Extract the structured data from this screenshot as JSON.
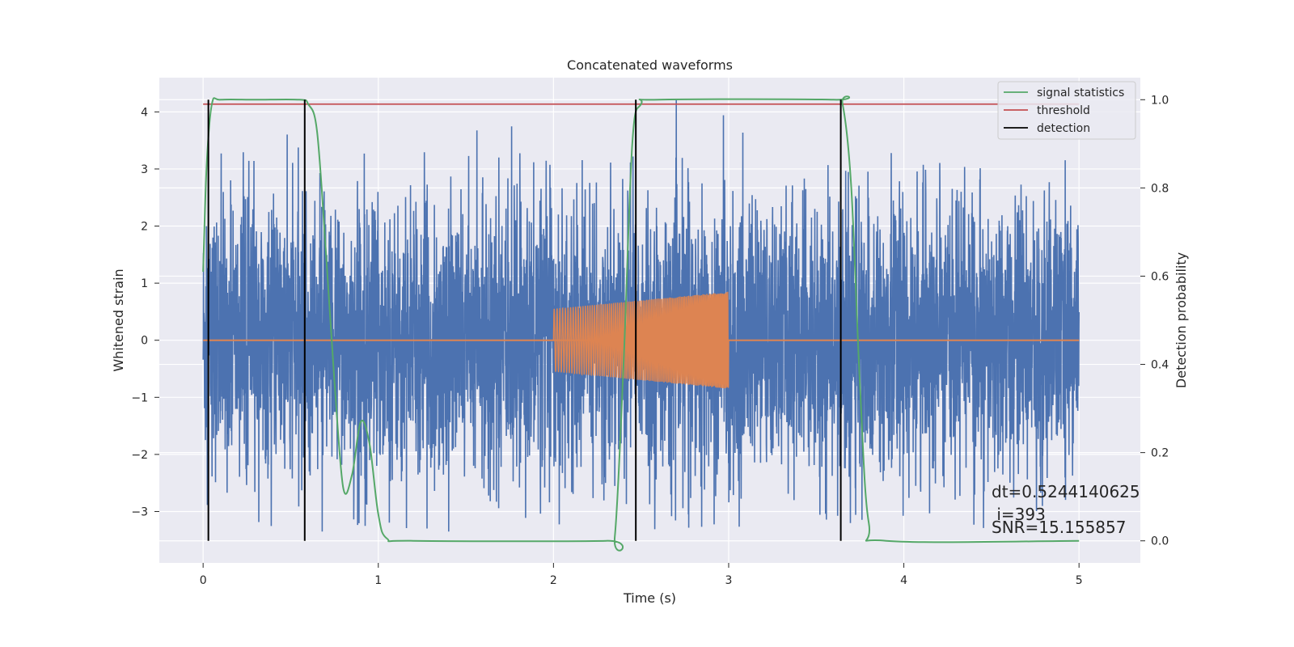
{
  "chart_data": {
    "type": "line",
    "title": "Concatenated waveforms",
    "xlabel": "Time (s)",
    "ylabel": "Whitened strain",
    "y2label": "Detection probability",
    "xlim": [
      -0.25,
      5.35
    ],
    "ylim": [
      -3.9,
      4.6
    ],
    "y2lim": [
      -0.05,
      1.05
    ],
    "xticks": [
      0,
      1,
      2,
      3,
      4,
      5
    ],
    "yticks": [
      -3,
      -2,
      -1,
      0,
      1,
      2,
      3,
      4
    ],
    "y2ticks": [
      0.0,
      0.2,
      0.4,
      0.6,
      0.8,
      1.0
    ],
    "grid": true,
    "legend_position": "top-right",
    "series": [
      {
        "name": "",
        "role": "noise",
        "color": "#4c72b0",
        "x_range": [
          0,
          5
        ],
        "amplitude": 1.1,
        "peak_max": 4.3,
        "peak_min": -3.35
      },
      {
        "name": "",
        "role": "injected-signal",
        "color": "#dd8452",
        "baseline": 0,
        "chirp": {
          "x_start": 2.0,
          "x_end": 3.0,
          "amp_start": 0.55,
          "amp_end": 0.85
        }
      },
      {
        "name": "signal statistics",
        "axis": "right",
        "color": "#55a868",
        "x": [
          0,
          0.02,
          0.05,
          0.1,
          0.3,
          0.55,
          0.6,
          0.65,
          0.7,
          0.75,
          0.8,
          0.85,
          0.9,
          0.95,
          1.0,
          1.05,
          1.2,
          2.3,
          2.35,
          2.4,
          2.45,
          2.5,
          2.6,
          3.6,
          3.65,
          3.7,
          3.75,
          3.8,
          3.9,
          5.0
        ],
        "y": [
          0.61,
          0.85,
          0.99,
          1.0,
          1.0,
          1.0,
          0.99,
          0.93,
          0.66,
          0.36,
          0.12,
          0.15,
          0.27,
          0.22,
          0.06,
          0.005,
          0.0,
          0.0,
          0.01,
          0.4,
          0.9,
          0.99,
          1.0,
          1.0,
          0.99,
          0.8,
          0.35,
          0.04,
          0.0,
          0.0
        ]
      },
      {
        "name": "threshold",
        "axis": "right",
        "color": "#c44e52",
        "y": 0.99
      },
      {
        "name": "detection",
        "axis": "right",
        "color": "#000000",
        "x": [
          0.03,
          0.58,
          2.47,
          3.64
        ],
        "y_range": [
          0.0,
          1.0
        ]
      }
    ],
    "annotations": {
      "dt": "dt=0.5244140625",
      "i": " i=393",
      "snr": "SNR=15.155857"
    }
  }
}
